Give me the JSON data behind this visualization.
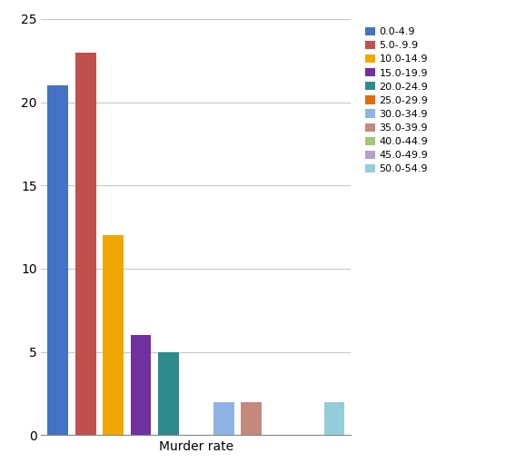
{
  "legend_labels": [
    "0.0-4.9",
    "5.0-.9.9",
    "10.0-14.9",
    "15.0-19.9",
    "20.0-24.9",
    "25.0-29.9",
    "30.0-34.9",
    "35.0-39.9",
    "40.0-44.9",
    "45.0-49.9",
    "50.0-54.9"
  ],
  "values": [
    21,
    23,
    12,
    6,
    5,
    0,
    2,
    2,
    0,
    0,
    2
  ],
  "bar_colors": [
    "#4472C4",
    "#C0504D",
    "#F0A800",
    "#7030A0",
    "#2E8B8B",
    "#E36C09",
    "#8DB4E2",
    "#C4897C",
    "#A5C778",
    "#B3A2C7",
    "#92CDDC"
  ],
  "x_positions": [
    0,
    1,
    2,
    3,
    4,
    5,
    6,
    7,
    8,
    9,
    10
  ],
  "xlabel": "Murder rate",
  "ylim": [
    0,
    25
  ],
  "yticks": [
    0,
    5,
    10,
    15,
    20,
    25
  ],
  "background_color": "#ffffff",
  "grid_color": "#c8c8c8",
  "bar_width": 0.75,
  "figsize": [
    5.68,
    5.21
  ],
  "dpi": 100,
  "xlim": [
    -0.6,
    10.6
  ]
}
